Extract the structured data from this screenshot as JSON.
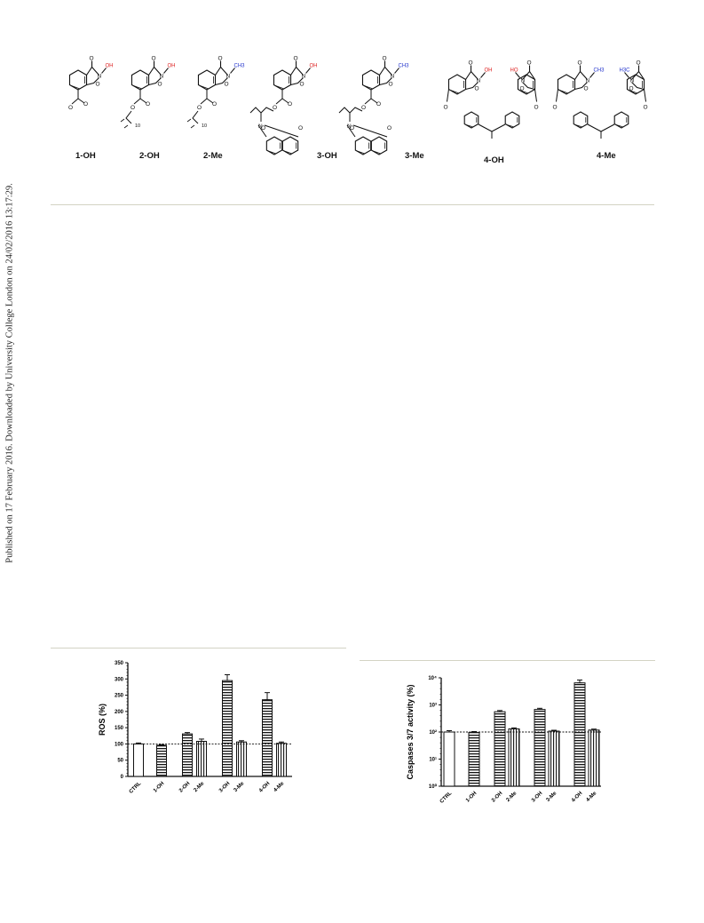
{
  "side_note": "Published on 17 February 2016. Downloaded by University College London on 24/02/2016 13:17:29.",
  "compounds": [
    {
      "label": "1-OH",
      "n_sub": "OH",
      "color": "#dd2222"
    },
    {
      "label": "2-OH",
      "n_sub": "OH",
      "color": "#dd2222",
      "chain_n": "10"
    },
    {
      "label": "2-Me",
      "n_sub": "CH3",
      "color": "#2233cc",
      "chain_n": "10"
    },
    {
      "label": "3-OH",
      "n_sub": "OH",
      "color": "#dd2222"
    },
    {
      "label": "3-Me",
      "n_sub": "CH3",
      "color": "#2233cc"
    },
    {
      "label": "4-OH",
      "n_sub_left": "OH",
      "n_sub_right": "HO",
      "color": "#dd2222"
    },
    {
      "label": "4-Me",
      "n_sub_left": "CH3",
      "n_sub_right": "H3C",
      "color": "#2233cc"
    }
  ],
  "chart_data": [
    {
      "type": "bar",
      "ylabel": "ROS (%)",
      "ylim": [
        0,
        350
      ],
      "yticks": [
        "0",
        "50",
        "100",
        "150",
        "200",
        "250",
        "300",
        "350"
      ],
      "categories": [
        "CTRL",
        "1-OH",
        "2-OH",
        "2-Me",
        "3-OH",
        "3-Me",
        "4-OH",
        "4-Me"
      ],
      "values": [
        100,
        96,
        131,
        108,
        295,
        106,
        236,
        102
      ],
      "errors": [
        3,
        2,
        4,
        7,
        18,
        4,
        22,
        4
      ],
      "reference_line": 100
    },
    {
      "type": "bar",
      "ylabel": "Caspases 3/7 activity (%)",
      "yscale": "log",
      "ylim": [
        1,
        10000
      ],
      "yticks": [
        "10⁰",
        "10¹",
        "10²",
        "10³",
        "10⁴"
      ],
      "categories": [
        "CTRL",
        "1-OH",
        "2-OH",
        "2-Me",
        "3-OH",
        "3-Me",
        "4-OH",
        "4-Me"
      ],
      "values": [
        100,
        96,
        560,
        130,
        680,
        108,
        6500,
        118
      ],
      "errors": [
        12,
        8,
        60,
        12,
        70,
        8,
        1800,
        10
      ],
      "reference_line": 100
    }
  ]
}
